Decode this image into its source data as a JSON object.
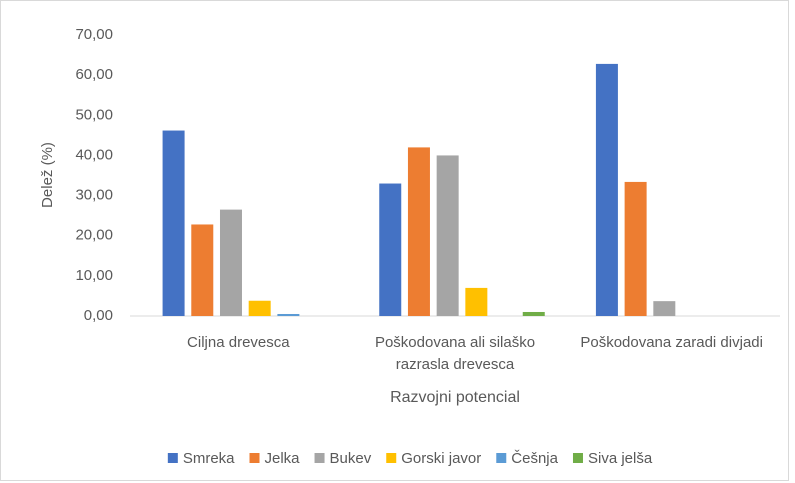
{
  "chart_data": {
    "type": "bar",
    "x_label": "Razvojni potencial",
    "y_label": "Delež (%)",
    "categories": [
      "Ciljna drevesca",
      "Poškodovana ali silaško razrasla drevesca",
      "Poškodovana zaradi divjadi"
    ],
    "series": [
      {
        "name": "Smreka",
        "color": "#4472c4",
        "values": [
          46.2,
          33.0,
          62.8
        ]
      },
      {
        "name": "Jelka",
        "color": "#ed7d31",
        "values": [
          22.8,
          42.0,
          33.4
        ]
      },
      {
        "name": "Bukev",
        "color": "#a5a5a5",
        "values": [
          26.5,
          40.0,
          3.7
        ]
      },
      {
        "name": "Gorski javor",
        "color": "#ffc000",
        "values": [
          3.8,
          7.0,
          0
        ]
      },
      {
        "name": "Češnja",
        "color": "#5b9bd5",
        "values": [
          0.5,
          0,
          0
        ]
      },
      {
        "name": "Siva jelša",
        "color": "#70ad47",
        "values": [
          0,
          1.0,
          0
        ]
      }
    ],
    "ylim": [
      0,
      70
    ],
    "yticks": [
      {
        "value": 0,
        "label": "0,00"
      },
      {
        "value": 10,
        "label": "10,00"
      },
      {
        "value": 20,
        "label": "20,00"
      },
      {
        "value": 30,
        "label": "30,00"
      },
      {
        "value": 40,
        "label": "40,00"
      },
      {
        "value": 50,
        "label": "50,00"
      },
      {
        "value": 60,
        "label": "60,00"
      },
      {
        "value": 70,
        "label": "70,00"
      }
    ],
    "legend": "bottom",
    "grid": false
  }
}
